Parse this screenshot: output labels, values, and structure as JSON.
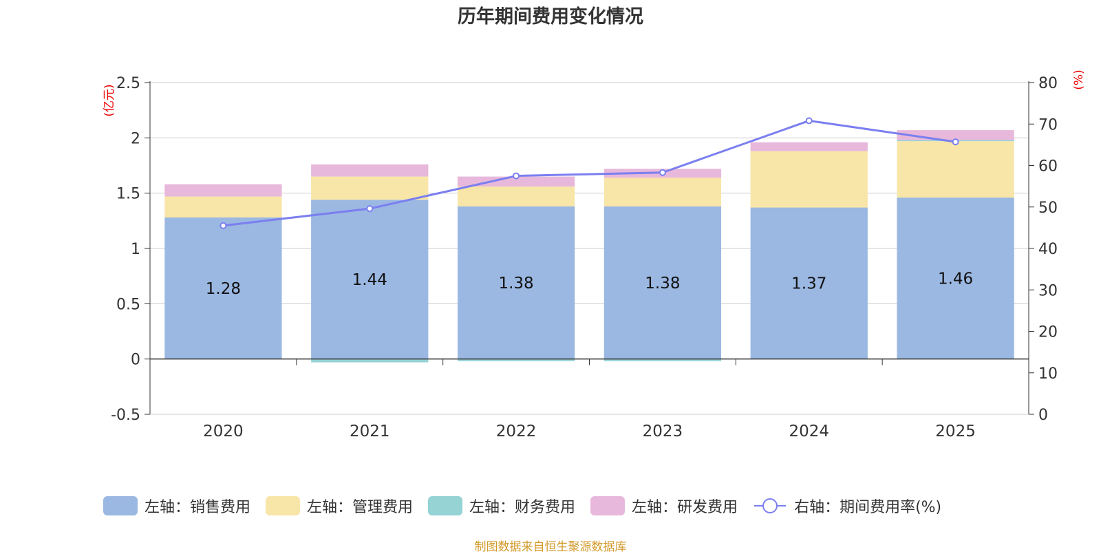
{
  "chart_data": {
    "type": "bar",
    "title": "历年期间费用变化情况",
    "categories": [
      "2020",
      "2021",
      "2022",
      "2023",
      "2024",
      "2025"
    ],
    "left_axis": {
      "unit_label": "(亿元)",
      "ylim": [
        -0.5,
        2.5
      ],
      "ticks": [
        "2.5",
        "2",
        "1.5",
        "1",
        "0.5",
        "0",
        "-0.5"
      ],
      "tick_values": [
        2.5,
        2,
        1.5,
        1,
        0.5,
        0,
        -0.5
      ]
    },
    "right_axis": {
      "unit_label": "(%)",
      "ylim": [
        0,
        80
      ],
      "ticks": [
        "80",
        "70",
        "60",
        "50",
        "40",
        "30",
        "20",
        "10",
        "0"
      ],
      "tick_values": [
        80,
        70,
        60,
        50,
        40,
        30,
        20,
        10,
        0
      ]
    },
    "series": [
      {
        "name": "左轴：销售费用",
        "type": "bar",
        "axis": "left",
        "color": "#9bb8e2",
        "values": [
          1.28,
          1.44,
          1.38,
          1.38,
          1.37,
          1.46
        ],
        "data_labels": [
          "1.28",
          "1.44",
          "1.38",
          "1.38",
          "1.37",
          "1.46"
        ]
      },
      {
        "name": "左轴：管理费用",
        "type": "bar",
        "axis": "left",
        "color": "#f8e6a8",
        "values": [
          0.19,
          0.21,
          0.18,
          0.26,
          0.51,
          0.51
        ]
      },
      {
        "name": "左轴：财务费用",
        "type": "bar",
        "axis": "left",
        "color": "#95d3d5",
        "values": [
          0.0,
          -0.03,
          -0.02,
          -0.02,
          0.0,
          0.01
        ]
      },
      {
        "name": "左轴：研发费用",
        "type": "bar",
        "axis": "left",
        "color": "#e7b8db",
        "values": [
          0.11,
          0.11,
          0.09,
          0.08,
          0.08,
          0.09
        ]
      },
      {
        "name": "右轴：期间费用率(%)",
        "type": "line",
        "axis": "right",
        "color": "#7b7fef",
        "values": [
          45.5,
          49.6,
          57.5,
          58.3,
          70.8,
          65.7
        ]
      }
    ]
  },
  "footer": {
    "source": "制图数据来自恒生聚源数据库"
  }
}
